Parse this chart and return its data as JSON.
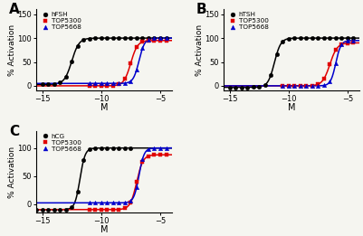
{
  "panel_A": {
    "label": "A",
    "legend": [
      "hFSH",
      "TOP5300",
      "TOP5668"
    ],
    "colors": [
      "black",
      "#e00000",
      "#0000cc"
    ],
    "markers": [
      "o",
      "s",
      "^"
    ],
    "curves": [
      {
        "ec50": -12.5,
        "hill": 1.4,
        "ymax": 100,
        "ymin": 3
      },
      {
        "ec50": -7.5,
        "hill": 1.5,
        "ymax": 95,
        "ymin": 0
      },
      {
        "ec50": -6.8,
        "hill": 1.8,
        "ymax": 100,
        "ymin": 5
      }
    ],
    "x_pts_curves": [
      [
        -15.0,
        -14.5,
        -14.0,
        -13.5,
        -13.0,
        -12.5,
        -12.0,
        -11.5,
        -11.0,
        -10.5,
        -10.0,
        -9.5,
        -9.0,
        -8.5,
        -8.0,
        -7.5,
        -7.0,
        -6.5,
        -6.0,
        -5.5,
        -5.0,
        -4.5
      ],
      [
        -11.0,
        -10.5,
        -10.0,
        -9.5,
        -9.0,
        -8.5,
        -8.0,
        -7.5,
        -7.0,
        -6.5,
        -6.0,
        -5.5,
        -5.0,
        -4.5
      ],
      [
        -11.0,
        -10.5,
        -10.0,
        -9.5,
        -9.0,
        -8.5,
        -8.0,
        -7.5,
        -7.0,
        -6.5,
        -6.0,
        -5.5,
        -5.0,
        -4.5
      ]
    ],
    "xlim": [
      -15.5,
      -4.0
    ],
    "ylim": [
      -10,
      160
    ],
    "yticks": [
      0,
      50,
      100,
      150
    ],
    "xticks": [
      -15,
      -10,
      -5
    ],
    "xlabel": "M",
    "ylabel": "% Activation"
  },
  "panel_B": {
    "label": "B",
    "legend": [
      "hTSH",
      "TOP5300",
      "TOP5668"
    ],
    "colors": [
      "black",
      "#e00000",
      "#0000cc"
    ],
    "markers": [
      "o",
      "s",
      "^"
    ],
    "curves": [
      {
        "ec50": -11.2,
        "hill": 1.6,
        "ymax": 100,
        "ymin": -3
      },
      {
        "ec50": -6.5,
        "hill": 1.4,
        "ymax": 90,
        "ymin": 0
      },
      {
        "ec50": -6.0,
        "hill": 2.0,
        "ymax": 95,
        "ymin": 0
      }
    ],
    "x_pts_curves": [
      [
        -15.0,
        -14.5,
        -14.0,
        -13.5,
        -13.0,
        -12.5,
        -12.0,
        -11.5,
        -11.0,
        -10.5,
        -10.0,
        -9.5,
        -9.0,
        -8.5,
        -8.0,
        -7.5,
        -7.0,
        -6.5,
        -6.0,
        -5.5,
        -5.0,
        -4.5
      ],
      [
        -10.5,
        -10.0,
        -9.5,
        -9.0,
        -8.5,
        -8.0,
        -7.5,
        -7.0,
        -6.5,
        -6.0,
        -5.5,
        -5.0,
        -4.5
      ],
      [
        -10.5,
        -10.0,
        -9.5,
        -9.0,
        -8.5,
        -8.0,
        -7.5,
        -7.0,
        -6.5,
        -6.0,
        -5.5,
        -5.0,
        -4.5
      ]
    ],
    "xlim": [
      -15.5,
      -4.0
    ],
    "ylim": [
      -10,
      160
    ],
    "yticks": [
      0,
      50,
      100,
      150
    ],
    "xticks": [
      -15,
      -10,
      -5
    ],
    "xlabel": "M",
    "ylabel": "% Activation"
  },
  "panel_C": {
    "label": "C",
    "legend": [
      "hCG",
      "TOP5300",
      "TOP5668"
    ],
    "colors": [
      "black",
      "#e00000",
      "#0000cc"
    ],
    "markers": [
      "o",
      "s",
      "^"
    ],
    "curves": [
      {
        "ec50": -11.8,
        "hill": 2.0,
        "ymax": 100,
        "ymin": -10
      },
      {
        "ec50": -7.0,
        "hill": 1.6,
        "ymax": 88,
        "ymin": -10
      },
      {
        "ec50": -6.8,
        "hill": 2.0,
        "ymax": 100,
        "ymin": 2
      }
    ],
    "x_pts_curves": [
      [
        -15.5,
        -15.0,
        -14.5,
        -14.0,
        -13.5,
        -13.0,
        -12.5,
        -12.0,
        -11.5,
        -11.0,
        -10.5,
        -10.0,
        -9.5,
        -9.0,
        -8.5,
        -8.0,
        -7.5
      ],
      [
        -11.0,
        -10.5,
        -10.0,
        -9.5,
        -9.0,
        -8.5,
        -8.0,
        -7.5,
        -7.0,
        -6.5,
        -6.0,
        -5.5,
        -5.0,
        -4.5
      ],
      [
        -11.0,
        -10.5,
        -10.0,
        -9.5,
        -9.0,
        -8.5,
        -8.0,
        -7.5,
        -7.0,
        -6.5,
        -6.0,
        -5.5,
        -5.0,
        -4.5
      ]
    ],
    "xlim": [
      -15.5,
      -4.0
    ],
    "ylim": [
      -15,
      130
    ],
    "yticks": [
      0,
      50,
      100
    ],
    "xticks": [
      -15,
      -10,
      -5
    ],
    "xlabel": "M",
    "ylabel": "% Activation"
  },
  "bg_color": "#f5f5f0",
  "figsize": [
    4.01,
    2.61
  ],
  "dpi": 100
}
